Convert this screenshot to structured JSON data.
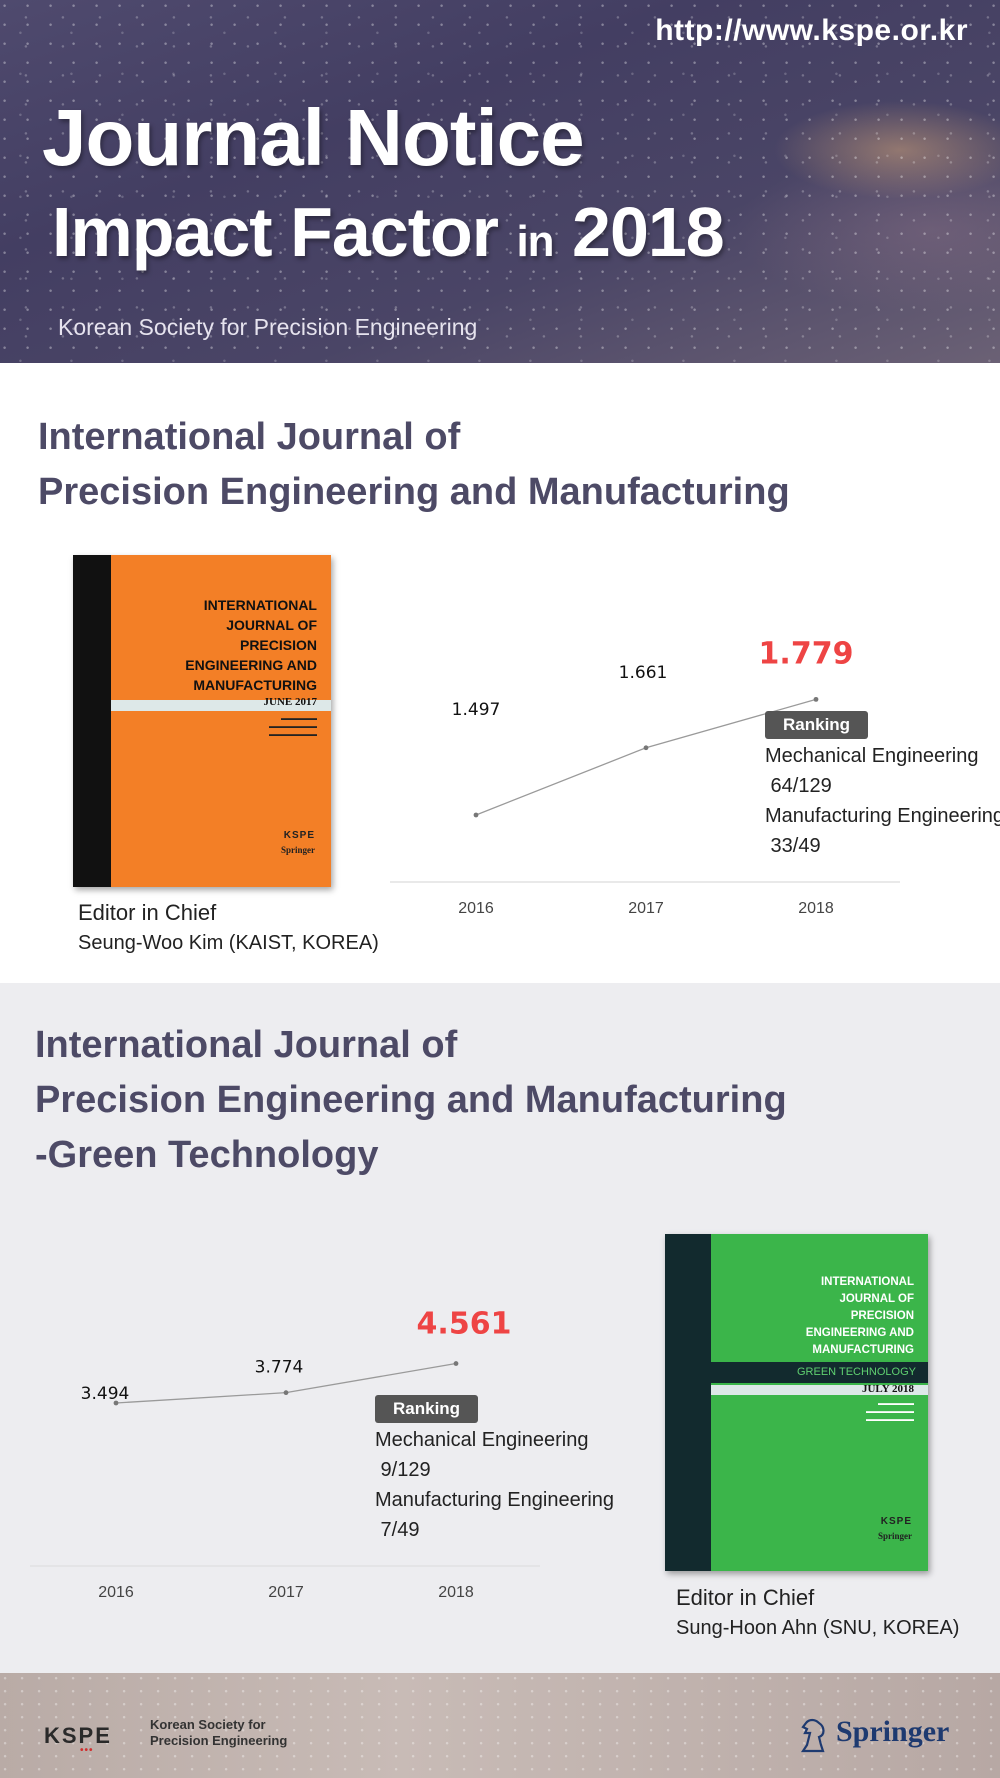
{
  "header": {
    "url": "http://www.kspe.or.kr",
    "title_line1": "Journal Notice",
    "title_line2_a": "Impact Factor",
    "title_line2_in": "in",
    "title_line2_b": "2018",
    "subtitle": "Korean Society for Precision Engineering"
  },
  "journal1": {
    "title_line1": "International Journal of",
    "title_line2": "Precision Engineering and Manufacturing",
    "cover": {
      "title_lines": [
        "INTERNATIONAL",
        "JOURNAL OF",
        "PRECISION",
        "ENGINEERING AND",
        "MANUFACTURING"
      ],
      "issue": "JUNE 2017",
      "color": "#f37f26"
    },
    "editor_label": "Editor in Chief",
    "editor_name": "Seung-Woo Kim (KAIST, KOREA)",
    "ranking": {
      "label": "Ranking",
      "lines": [
        "Mechanical Engineering",
        " 64/129",
        "Manufacturing Engineering",
        " 33/49"
      ]
    }
  },
  "journal2": {
    "title_line1": "International Journal of",
    "title_line2": "Precision Engineering and Manufacturing",
    "title_line3": "-Green Technology",
    "cover": {
      "title_lines": [
        "INTERNATIONAL",
        "JOURNAL OF",
        "PRECISION",
        "ENGINEERING AND",
        "MANUFACTURING"
      ],
      "subtitle": "GREEN TECHNOLOGY",
      "issue": "JULY 2018",
      "color": "#3bb54a"
    },
    "editor_label": "Editor in Chief",
    "editor_name": "Sung-Hoon Ahn (SNU, KOREA)",
    "ranking": {
      "label": "Ranking",
      "lines": [
        "Mechanical Engineering",
        " 9/129",
        "Manufacturing Engineering",
        " 7/49"
      ]
    }
  },
  "footer": {
    "kspe_logo": "KSPE",
    "kspe_text_line1": "Korean Society for",
    "kspe_text_line2": "Precision Engineering",
    "springer": "Springer"
  },
  "chart_data": [
    {
      "type": "line",
      "x": [
        "2016",
        "2017",
        "2018"
      ],
      "values": [
        1.497,
        1.661,
        1.779
      ],
      "labels": [
        "1.497",
        "1.661",
        "1.779"
      ],
      "highlight_color": "#ee4444",
      "line_color": "#9a9a9a"
    },
    {
      "type": "line",
      "x": [
        "2016",
        "2017",
        "2018"
      ],
      "values": [
        3.494,
        3.774,
        4.561
      ],
      "labels": [
        "3.494",
        "3.774",
        "4.561"
      ],
      "highlight_color": "#ee4444",
      "line_color": "#9a9a9a"
    }
  ]
}
